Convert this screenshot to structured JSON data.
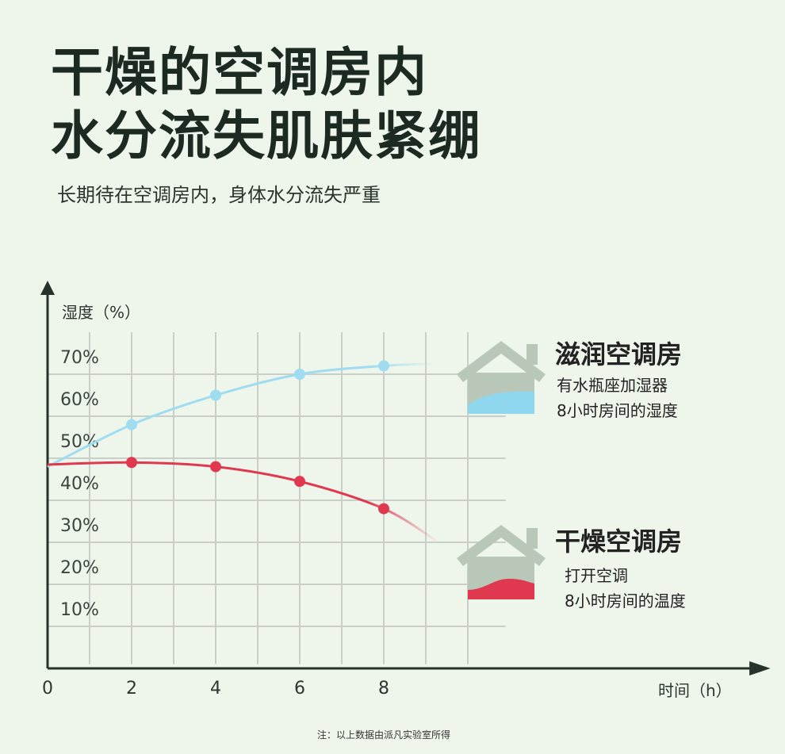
{
  "header": {
    "title_line1": "干燥的空调房内",
    "title_line2": "水分流失肌肤紧绷",
    "subtitle": "长期待在空调房内，身体水分流失严重"
  },
  "chart_data": {
    "type": "line",
    "ylabel": "湿度（%）",
    "xlabel": "时间（h）",
    "x_ticks": [
      "0",
      "2",
      "4",
      "6",
      "8"
    ],
    "y_ticks": [
      "10%",
      "20%",
      "30%",
      "40%",
      "50%",
      "60%",
      "70%"
    ],
    "xlim": [
      0,
      10
    ],
    "ylim": [
      0,
      80
    ],
    "grid": true,
    "series": [
      {
        "name": "滋润空调房",
        "color": "#9fdcef",
        "x": [
          0,
          2,
          4,
          6,
          8,
          9.3
        ],
        "y": [
          48,
          58,
          65,
          70,
          72,
          72.5
        ],
        "markers": [
          2,
          4,
          6,
          8
        ]
      },
      {
        "name": "干燥空调房",
        "color": "#e0384f",
        "x": [
          0,
          2,
          4,
          6,
          8,
          9.3
        ],
        "y": [
          48.5,
          49,
          48,
          44.5,
          38,
          30
        ],
        "markers": [
          2,
          4,
          6,
          8
        ]
      }
    ]
  },
  "legend": {
    "moist": {
      "title": "滋润空调房",
      "line1": "有水瓶座加湿器",
      "line2": "8小时房间的湿度"
    },
    "dry": {
      "title": "干燥空调房",
      "line1": "打开空调",
      "line2": "8小时房间的温度"
    }
  },
  "footnote": "注：以上数据由派凡实验室所得",
  "colors": {
    "background": "#eef6ec",
    "grid": "#c9cfc8",
    "axis": "#25332a",
    "moist": "#9fdcef",
    "dry": "#e0384f",
    "house": "#b9c7b8"
  }
}
